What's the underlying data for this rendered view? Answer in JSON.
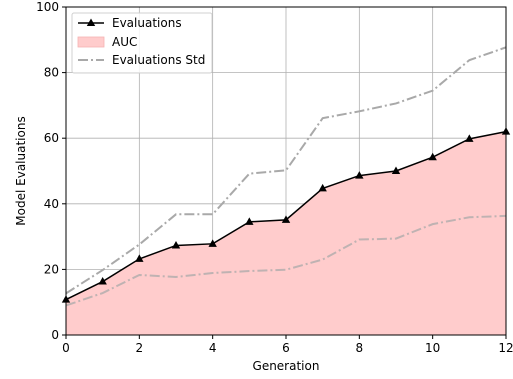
{
  "chart_data": {
    "type": "line",
    "xlabel": "Generation",
    "ylabel": "Model Evaluations",
    "xlim": [
      0,
      12
    ],
    "ylim": [
      0,
      100
    ],
    "xticks": [
      0,
      2,
      4,
      6,
      8,
      10,
      12
    ],
    "yticks": [
      0,
      20,
      40,
      60,
      80,
      100
    ],
    "grid": true,
    "legend_position": "upper-left",
    "x": [
      0,
      1,
      2,
      3,
      4,
      5,
      6,
      7,
      8,
      9,
      10,
      11,
      12
    ],
    "series": [
      {
        "name": "Evaluations",
        "style": "solid line with triangle markers",
        "color": "#000000",
        "values": [
          10.8,
          16.3,
          23.2,
          27.3,
          27.8,
          34.5,
          35.1,
          44.7,
          48.6,
          50.0,
          54.2,
          59.8,
          62.0
        ]
      },
      {
        "name": "AUC",
        "style": "filled area under Evaluations",
        "color": "#ffcccc"
      },
      {
        "name": "Evaluations Std",
        "style": "dash-dot lines (upper and lower bound)",
        "color": "#a9a9a9",
        "upper": [
          12.7,
          19.8,
          27.6,
          36.8,
          36.8,
          49.2,
          50.2,
          66.1,
          68.2,
          70.6,
          74.5,
          83.8,
          87.7
        ],
        "lower": [
          9.0,
          12.8,
          18.3,
          17.7,
          18.9,
          19.5,
          19.9,
          23.0,
          29.1,
          29.4,
          33.8,
          35.9,
          36.3
        ]
      }
    ]
  }
}
